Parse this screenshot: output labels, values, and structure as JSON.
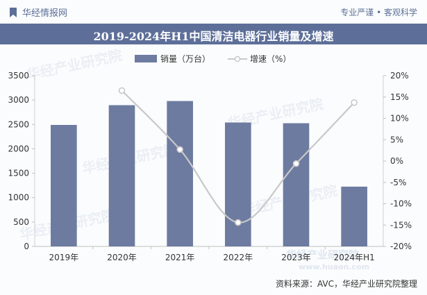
{
  "header": {
    "brand": "华经情报网",
    "slogan": "专业严谨 • 客观科学",
    "title": "2019-2024年H1中国清洁电器行业销量及增速",
    "source": "资料来源：AVC，华经产业研究院整理"
  },
  "watermark": {
    "text": "华经产业研究院",
    "url": "www.huaon.com"
  },
  "colors": {
    "bar": "#6d7ba0",
    "line": "#c8c8c8",
    "accent": "#5d6f99"
  },
  "chart_data": {
    "type": "bar",
    "title": "2019-2024年H1中国清洁电器行业销量及增速",
    "categories": [
      "2019年",
      "2020年",
      "2021年",
      "2022年",
      "2023年",
      "2024年H1"
    ],
    "series": [
      {
        "name": "销量（万台）",
        "type": "bar",
        "axis": "left",
        "values": [
          2490,
          2895,
          2980,
          2540,
          2525,
          1225
        ]
      },
      {
        "name": "增速（%）",
        "type": "line",
        "axis": "right",
        "values": [
          null,
          16.5,
          2.7,
          -14.4,
          -0.6,
          13.7
        ]
      }
    ],
    "y_left": {
      "min": 0,
      "max": 3500,
      "step": 500,
      "ticks": [
        "0",
        "500",
        "1000",
        "1500",
        "2000",
        "2500",
        "3000",
        "3500"
      ]
    },
    "y_right": {
      "min": -20,
      "max": 20,
      "step": 5,
      "ticks": [
        "-20%",
        "-15%",
        "-10%",
        "-5%",
        "0%",
        "5%",
        "10%",
        "15%",
        "20%"
      ]
    },
    "legend": {
      "position": "top-center",
      "bar_label": "销量（万台）",
      "line_label": "增速（%）"
    }
  }
}
